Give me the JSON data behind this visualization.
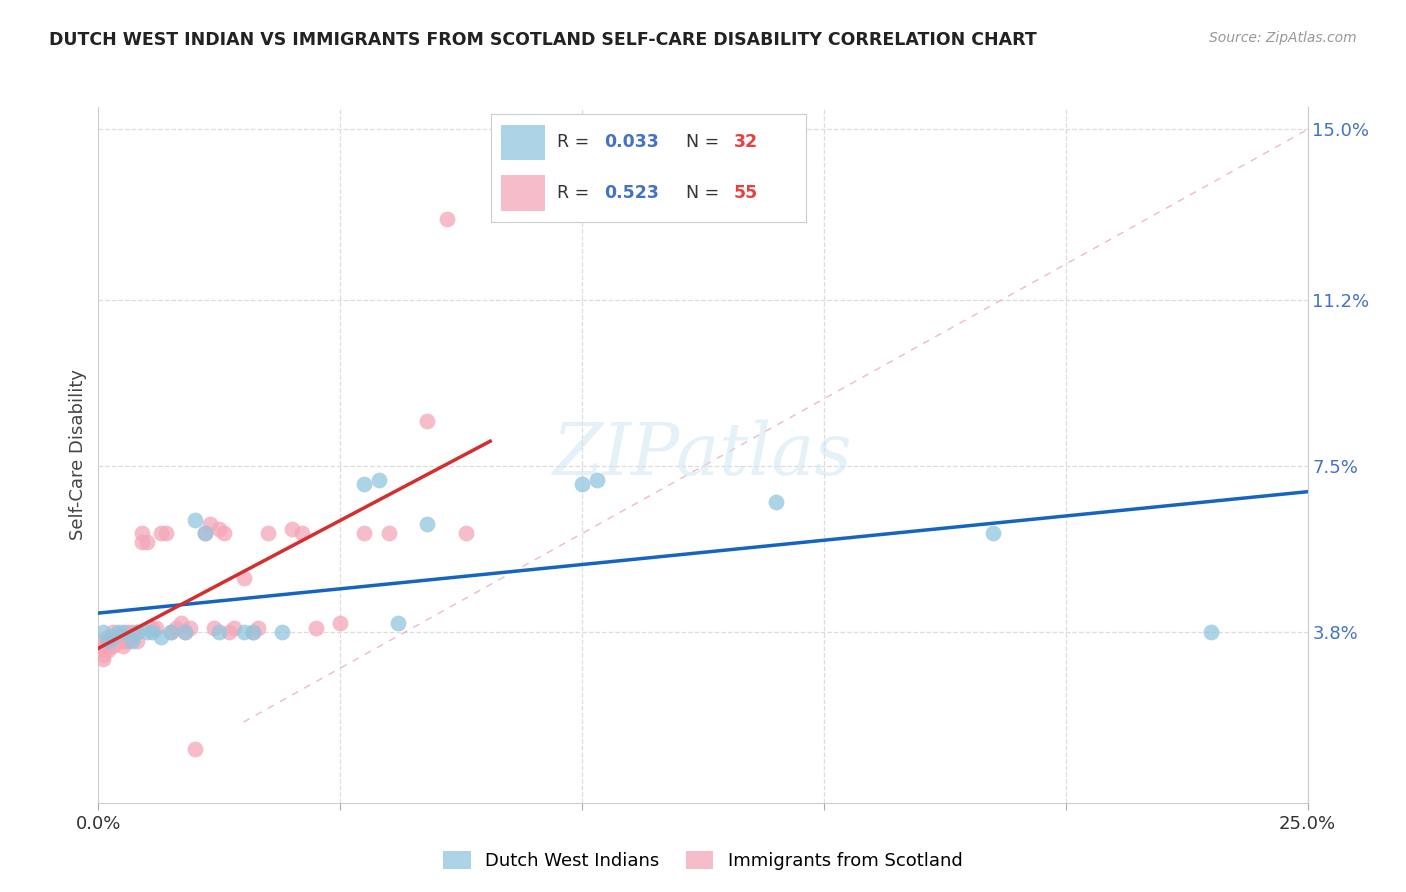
{
  "title": "DUTCH WEST INDIAN VS IMMIGRANTS FROM SCOTLAND SELF-CARE DISABILITY CORRELATION CHART",
  "source": "Source: ZipAtlas.com",
  "ylabel": "Self-Care Disability",
  "xlim": [
    0.0,
    0.25
  ],
  "ylim": [
    0.0,
    0.155
  ],
  "ytick_positions": [
    0.038,
    0.075,
    0.112,
    0.15
  ],
  "ytick_labels": [
    "3.8%",
    "7.5%",
    "11.2%",
    "15.0%"
  ],
  "color_blue": "#92c5de",
  "color_pink": "#f4a6b8",
  "color_trendline_blue": "#1565c0",
  "color_trendline_pink": "#d32f2f",
  "color_diagonal": "#f0b0b8",
  "blue_x": [
    0.001,
    0.002,
    0.003,
    0.004,
    0.005,
    0.007,
    0.008,
    0.01,
    0.011,
    0.013,
    0.015,
    0.018,
    0.02,
    0.022,
    0.025,
    0.03,
    0.032,
    0.038,
    0.055,
    0.058,
    0.062,
    0.068,
    0.1,
    0.103,
    0.14,
    0.185,
    0.23
  ],
  "blue_y": [
    0.038,
    0.036,
    0.037,
    0.038,
    0.038,
    0.036,
    0.038,
    0.038,
    0.038,
    0.037,
    0.038,
    0.038,
    0.063,
    0.06,
    0.038,
    0.038,
    0.038,
    0.038,
    0.071,
    0.072,
    0.04,
    0.062,
    0.071,
    0.072,
    0.067,
    0.06,
    0.038
  ],
  "pink_x": [
    0.001,
    0.001,
    0.001,
    0.001,
    0.001,
    0.002,
    0.002,
    0.002,
    0.003,
    0.003,
    0.004,
    0.004,
    0.005,
    0.005,
    0.005,
    0.006,
    0.006,
    0.006,
    0.007,
    0.007,
    0.008,
    0.008,
    0.009,
    0.009,
    0.01,
    0.011,
    0.012,
    0.013,
    0.014,
    0.015,
    0.016,
    0.017,
    0.018,
    0.019,
    0.02,
    0.022,
    0.023,
    0.024,
    0.025,
    0.026,
    0.027,
    0.028,
    0.03,
    0.032,
    0.033,
    0.035,
    0.04,
    0.042,
    0.045,
    0.05,
    0.055,
    0.06,
    0.068,
    0.072,
    0.076
  ],
  "pink_y": [
    0.034,
    0.036,
    0.033,
    0.035,
    0.032,
    0.035,
    0.034,
    0.037,
    0.035,
    0.038,
    0.037,
    0.036,
    0.037,
    0.035,
    0.036,
    0.037,
    0.038,
    0.036,
    0.037,
    0.038,
    0.036,
    0.038,
    0.06,
    0.058,
    0.058,
    0.039,
    0.039,
    0.06,
    0.06,
    0.038,
    0.039,
    0.04,
    0.038,
    0.039,
    0.012,
    0.06,
    0.062,
    0.039,
    0.061,
    0.06,
    0.038,
    0.039,
    0.05,
    0.038,
    0.039,
    0.06,
    0.061,
    0.06,
    0.039,
    0.04,
    0.06,
    0.06,
    0.085,
    0.13,
    0.06
  ]
}
